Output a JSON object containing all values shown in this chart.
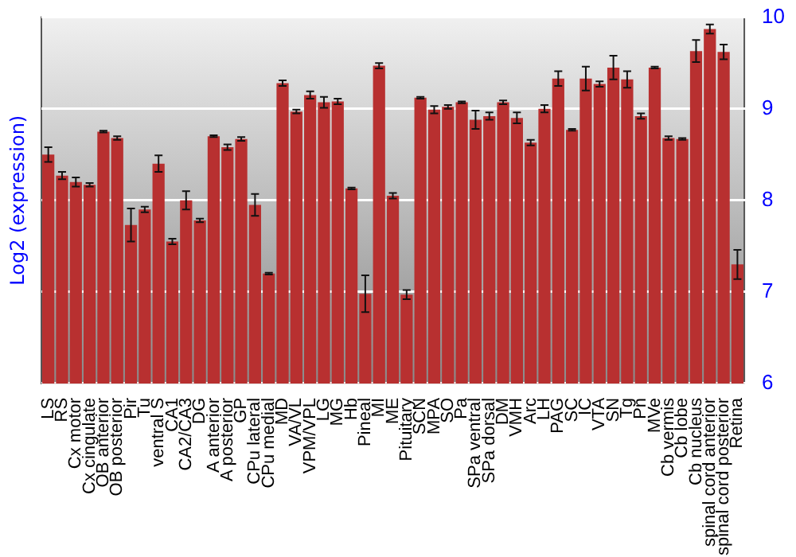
{
  "chart_data": {
    "type": "bar",
    "ylabel": "Log2 (expression)",
    "categories": [
      "LS",
      "RS",
      "Cx motor",
      "Cx cingulate",
      "OB anterior",
      "OB posterior",
      "Pir",
      "Tu",
      "ventral S",
      "CA1",
      "CA2/CA3",
      "DG",
      "A anterior",
      "A posterior",
      "GP",
      "CPu lateral",
      "CPu medial",
      "MD",
      "VA/VL",
      "VPM/VPL",
      "LG",
      "MG",
      "Hb",
      "Pineal",
      "MI",
      "ME",
      "Pituitary",
      "SCN",
      "MPA",
      "SO",
      "Pa",
      "SPa ventral",
      "SPa dorsal",
      "DM",
      "VMH",
      "Arc",
      "LH",
      "PAG",
      "SC",
      "IC",
      "VTA",
      "SN",
      "Tg",
      "Pn",
      "MVe",
      "Cb vermis",
      "Cb lobe",
      "Cb nucleus",
      "spinal cord anterior",
      "spinal cord posterior",
      "Retina"
    ],
    "series": [
      {
        "color": "#b83030",
        "values": [
          8.5,
          8.27,
          8.2,
          8.17,
          8.75,
          8.68,
          7.73,
          7.9,
          8.4,
          7.55,
          8.0,
          7.78,
          8.7,
          8.58,
          8.67,
          7.95,
          7.2,
          9.28,
          8.97,
          9.15,
          9.07,
          9.08,
          8.13,
          6.98,
          9.47,
          8.05,
          6.97,
          9.12,
          8.99,
          9.02,
          9.07,
          8.88,
          8.92,
          9.07,
          8.9,
          8.63,
          9.0,
          9.33,
          8.77,
          9.33,
          9.27,
          9.45,
          9.32,
          8.92,
          9.45,
          8.68,
          8.67,
          9.63,
          9.87,
          9.62,
          7.3
        ],
        "errors": [
          0.08,
          0.04,
          0.05,
          0.02,
          0.01,
          0.02,
          0.18,
          0.03,
          0.09,
          0.03,
          0.1,
          0.02,
          0.01,
          0.03,
          0.02,
          0.12,
          0.01,
          0.03,
          0.02,
          0.04,
          0.06,
          0.03,
          0.01,
          0.2,
          0.03,
          0.03,
          0.05,
          0.01,
          0.04,
          0.02,
          0.01,
          0.1,
          0.04,
          0.02,
          0.06,
          0.03,
          0.04,
          0.08,
          0.01,
          0.13,
          0.03,
          0.13,
          0.09,
          0.03,
          0.01,
          0.02,
          0.01,
          0.12,
          0.05,
          0.08,
          0.16
        ]
      }
    ],
    "ylim": [
      6,
      10
    ],
    "yticks": [
      6,
      7,
      8,
      9,
      10
    ],
    "grid": "y",
    "legend": false
  }
}
